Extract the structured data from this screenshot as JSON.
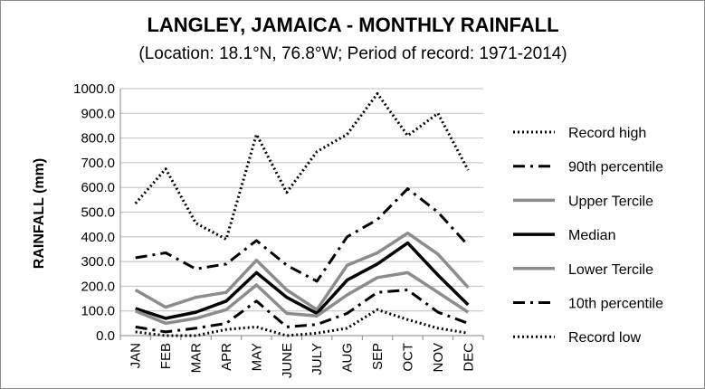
{
  "chart_data": {
    "type": "line",
    "title": "LANGLEY, JAMAICA - MONTHLY RAINFALL",
    "subtitle": "(Location: 18.1°N, 76.8°W; Period of record: 1971-2014)",
    "xlabel": "",
    "ylabel": "RAINFALL (mm)",
    "ylim": [
      0,
      1000
    ],
    "yticks": [
      "0.0",
      "100.0",
      "200.0",
      "300.0",
      "400.0",
      "500.0",
      "600.0",
      "700.0",
      "800.0",
      "900.0",
      "1000.0"
    ],
    "categories": [
      "JAN",
      "FEB",
      "MAR",
      "APR",
      "MAY",
      "JUNE",
      "JULY",
      "AUG",
      "SEP",
      "OCT",
      "NOV",
      "DEC"
    ],
    "grid": true,
    "legend_position": "right",
    "series": [
      {
        "name": "Record high",
        "color": "#000000",
        "style": "dotted",
        "values": [
          535,
          675,
          455,
          390,
          815,
          580,
          745,
          815,
          980,
          810,
          900,
          670
        ]
      },
      {
        "name": "90th percentile",
        "color": "#000000",
        "style": "dashdot",
        "values": [
          315,
          335,
          270,
          290,
          385,
          285,
          220,
          400,
          470,
          595,
          500,
          365
        ]
      },
      {
        "name": "Upper Tercile",
        "color": "#8c8c8c",
        "style": "solid",
        "values": [
          185,
          115,
          155,
          175,
          305,
          185,
          105,
          285,
          335,
          415,
          330,
          195
        ]
      },
      {
        "name": "Median",
        "color": "#000000",
        "style": "solid",
        "values": [
          110,
          70,
          95,
          140,
          255,
          155,
          90,
          225,
          290,
          375,
          245,
          125
        ]
      },
      {
        "name": "Lower Tercile",
        "color": "#8c8c8c",
        "style": "solid",
        "values": [
          100,
          50,
          70,
          105,
          205,
          90,
          80,
          165,
          235,
          255,
          175,
          95
        ]
      },
      {
        "name": "10th percentile",
        "color": "#000000",
        "style": "dashdot",
        "values": [
          35,
          15,
          30,
          50,
          140,
          35,
          45,
          90,
          175,
          185,
          95,
          50
        ]
      },
      {
        "name": "Record low",
        "color": "#000000",
        "style": "dotted",
        "values": [
          15,
          0,
          0,
          25,
          35,
          0,
          10,
          30,
          105,
          65,
          30,
          10
        ]
      }
    ]
  }
}
